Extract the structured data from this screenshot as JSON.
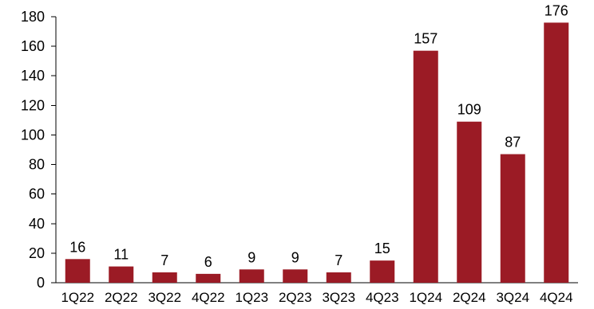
{
  "chart_data": {
    "type": "bar",
    "categories": [
      "1Q22",
      "2Q22",
      "3Q22",
      "4Q22",
      "1Q23",
      "2Q23",
      "3Q23",
      "4Q23",
      "1Q24",
      "2Q24",
      "3Q24",
      "4Q24"
    ],
    "values": [
      16,
      11,
      7,
      6,
      9,
      9,
      7,
      15,
      157,
      109,
      87,
      176
    ],
    "title": "",
    "xlabel": "",
    "ylabel": "",
    "ylim": [
      0,
      180
    ],
    "yticks": [
      0,
      20,
      40,
      60,
      80,
      100,
      120,
      140,
      160,
      180
    ],
    "grid": false,
    "legend": "none",
    "bar_color": "#9b1b25"
  }
}
